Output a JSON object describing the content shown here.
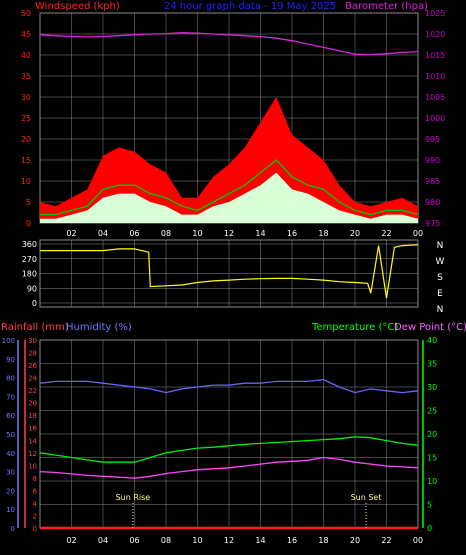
{
  "header": {
    "left": "Windspeed (kph)",
    "center": "24 hour graph data - 19 May 2025",
    "right": "Barometer (hpa)"
  },
  "colors": {
    "wind_axis": "#ff2020",
    "baro_axis": "#cc00cc",
    "gust": "#ff0000",
    "speed": "#ffffff",
    "avg": "#00cc00",
    "baro": "#dd22dd",
    "direction": "#ffff00",
    "rain": "#ff2020",
    "humidity": "#6666ff",
    "temp": "#00ee00",
    "dew": "#ff44ff",
    "title_blue": "#2222ff",
    "grid": "#8a8a8a",
    "text_right": "#ffffff",
    "rain_axis": "#ff4040",
    "hum_axis": "#7777ff",
    "temp_axis": "#00ff00",
    "sun_text": "#ffff88"
  },
  "chart_data": [
    {
      "type": "area",
      "name": "wind-barometer",
      "x_ticks": [
        "02",
        "04",
        "06",
        "08",
        "10",
        "12",
        "14",
        "16",
        "18",
        "20",
        "22",
        "00"
      ],
      "y_left": {
        "label": "Windspeed (kph)",
        "ticks": [
          "0",
          "5",
          "10",
          "15",
          "20",
          "25",
          "30",
          "35",
          "40",
          "45",
          "50"
        ],
        "ylim": [
          0,
          50
        ]
      },
      "y_right": {
        "label": "Barometer (hpa)",
        "ticks": [
          "975",
          "980",
          "985",
          "990",
          "995",
          "1000",
          "1005",
          "1010",
          "1015",
          "1020",
          "1025"
        ],
        "ylim": [
          975,
          1025
        ]
      },
      "x_hours": [
        0,
        1,
        2,
        3,
        4,
        5,
        6,
        7,
        8,
        9,
        10,
        11,
        12,
        13,
        14,
        15,
        16,
        17,
        18,
        19,
        20,
        21,
        22,
        23,
        24
      ],
      "gust": [
        5,
        4,
        6,
        8,
        16,
        18,
        17,
        14,
        12,
        6,
        6,
        11,
        14,
        18,
        24,
        30,
        21,
        18,
        15,
        9,
        5,
        4,
        5,
        6,
        4
      ],
      "avg": [
        2,
        2,
        3,
        4,
        8,
        9,
        9,
        7,
        6,
        4,
        3,
        5,
        7,
        9,
        12,
        15,
        11,
        9,
        8,
        5,
        3,
        2,
        3,
        3,
        2
      ],
      "speed": [
        1,
        1,
        2,
        3,
        6,
        7,
        7,
        5,
        4,
        2,
        2,
        4,
        5,
        7,
        9,
        12,
        8,
        7,
        5,
        3,
        2,
        1,
        2,
        2,
        1
      ],
      "barometer": [
        1019.8,
        1019.6,
        1019.4,
        1019.3,
        1019.4,
        1019.6,
        1019.8,
        1020.0,
        1020.1,
        1020.3,
        1020.2,
        1020.0,
        1019.8,
        1019.6,
        1019.4,
        1019.0,
        1018.4,
        1017.6,
        1016.8,
        1016.0,
        1015.2,
        1015.1,
        1015.3,
        1015.6,
        1015.8
      ]
    },
    {
      "type": "line",
      "name": "wind-direction",
      "y_ticks": [
        "360",
        "270",
        "180",
        "90",
        "0"
      ],
      "ylim": [
        0,
        360
      ],
      "compass": [
        "N",
        "W",
        "S",
        "E",
        "N"
      ],
      "x_hours": [
        0,
        1,
        2,
        3,
        4,
        5,
        6,
        6.9,
        7,
        8,
        9,
        10,
        11,
        12,
        13,
        14,
        15,
        16,
        17,
        18,
        19,
        20,
        20.8,
        21,
        21.5,
        22,
        22.5,
        23,
        24
      ],
      "direction": [
        320,
        320,
        320,
        320,
        320,
        330,
        330,
        310,
        100,
        105,
        110,
        125,
        135,
        140,
        145,
        148,
        150,
        150,
        145,
        140,
        130,
        125,
        120,
        60,
        350,
        30,
        340,
        350,
        355
      ]
    },
    {
      "type": "line",
      "name": "temperature-humidity",
      "titles": {
        "rain": "Rainfall (mm)",
        "humidity": "Humidity (%)",
        "temp": "Temperature (°C)",
        "dew": "Dew Point (°C)"
      },
      "rain_ticks": [
        "0",
        "2",
        "4",
        "6",
        "8",
        "10",
        "12",
        "14",
        "16",
        "18",
        "20",
        "22",
        "24",
        "26",
        "28",
        "30"
      ],
      "humidity_ticks": [
        "0",
        "10",
        "20",
        "30",
        "40",
        "50",
        "60",
        "70",
        "80",
        "90",
        "100"
      ],
      "temp_ticks": [
        "0",
        "5",
        "10",
        "15",
        "20",
        "25",
        "30",
        "35",
        "40"
      ],
      "x_hours": [
        0,
        1,
        2,
        3,
        4,
        5,
        6,
        7,
        8,
        9,
        10,
        11,
        12,
        13,
        14,
        15,
        16,
        17,
        18,
        19,
        20,
        21,
        22,
        23,
        24
      ],
      "humidity": [
        77,
        78,
        78,
        78,
        77,
        76,
        75,
        74,
        72,
        74,
        75,
        76,
        76,
        77,
        77,
        78,
        78,
        78,
        79,
        75,
        72,
        74,
        73,
        72,
        73
      ],
      "temperature": [
        16,
        15.5,
        15,
        14.5,
        14,
        14,
        14,
        15,
        16,
        16.5,
        17,
        17.2,
        17.5,
        17.8,
        18,
        18.2,
        18.4,
        18.6,
        18.8,
        19,
        19.4,
        19.2,
        18.6,
        18,
        17.6
      ],
      "dew_point": [
        12,
        11.8,
        11.5,
        11.2,
        11,
        10.8,
        10.6,
        11,
        11.6,
        12,
        12.4,
        12.6,
        12.8,
        13.2,
        13.6,
        14,
        14.2,
        14.4,
        15,
        14.6,
        14,
        13.6,
        13.2,
        13,
        12.8
      ],
      "rain": [
        0,
        0,
        0,
        0,
        0,
        0,
        0,
        0,
        0,
        0,
        0,
        0,
        0,
        0,
        0,
        0,
        0,
        0,
        0,
        0,
        0,
        0,
        0,
        0,
        0
      ],
      "annotations": [
        {
          "text": "Sun Rise",
          "hour": 5.9
        },
        {
          "text": "Sun Set",
          "hour": 20.7
        }
      ]
    }
  ]
}
